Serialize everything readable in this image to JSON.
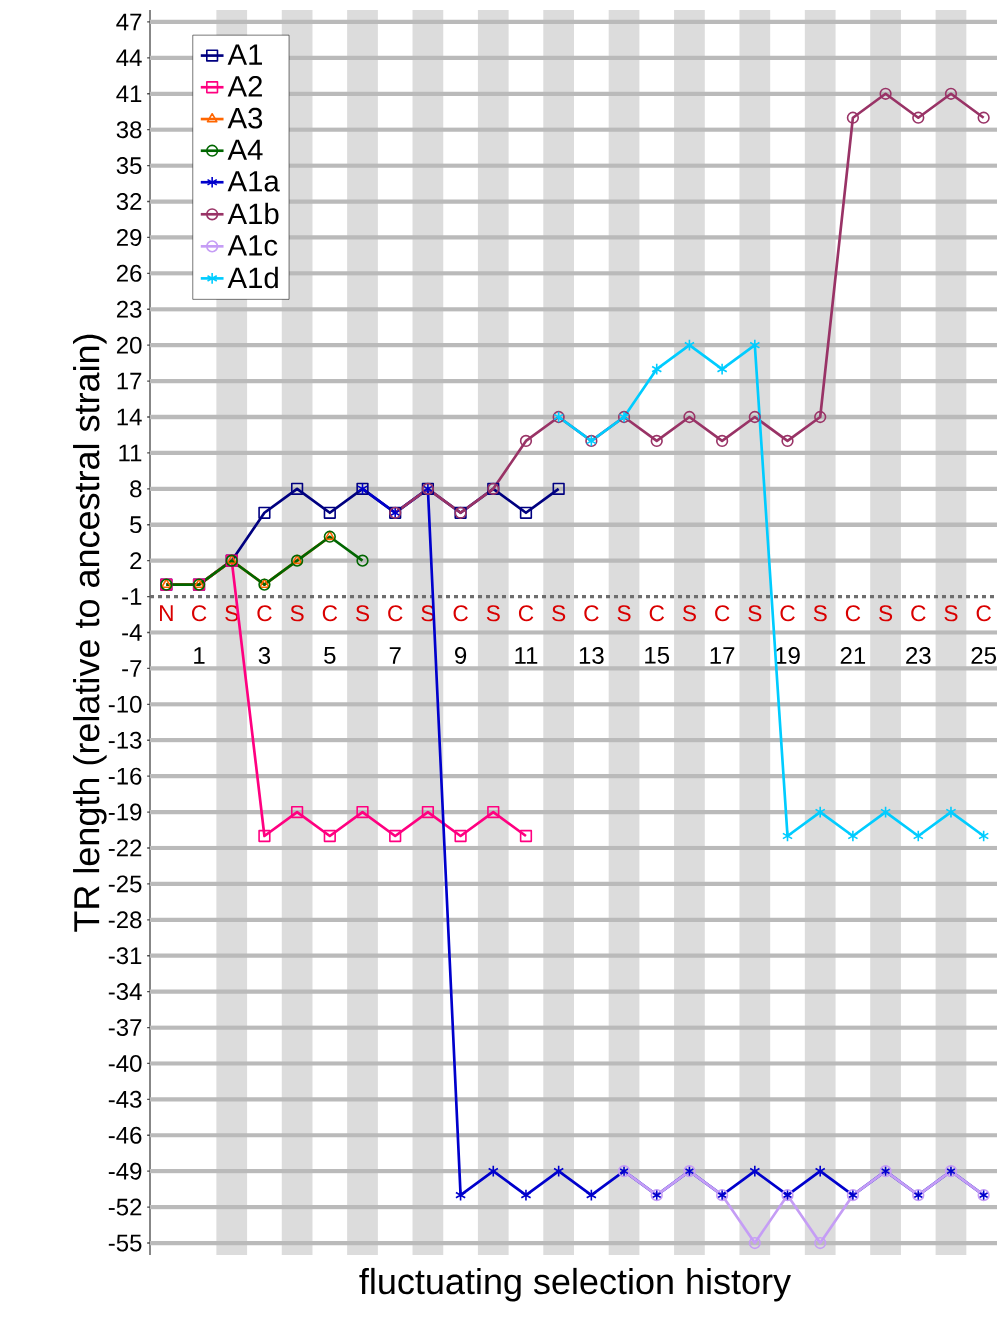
{
  "chart_data": {
    "type": "line",
    "xlabel": "fluctuating selection history",
    "ylabel": "TR length (relative to ancestral strain)",
    "x": [
      0,
      1,
      2,
      3,
      4,
      5,
      6,
      7,
      8,
      9,
      10,
      11,
      12,
      13,
      14,
      15,
      16,
      17,
      18,
      19,
      20,
      21,
      22,
      23,
      24,
      25
    ],
    "xlim": [
      -0.5,
      25.5
    ],
    "xticks": [
      1,
      3,
      5,
      7,
      9,
      11,
      13,
      15,
      17,
      19,
      21,
      23,
      25
    ],
    "ylim": [
      -56,
      48
    ],
    "yticks": [
      -55,
      -52,
      -49,
      -46,
      -43,
      -40,
      -37,
      -34,
      -31,
      -28,
      -25,
      -22,
      -19,
      -16,
      -13,
      -10,
      -7,
      -4,
      -1,
      2,
      5,
      8,
      11,
      14,
      17,
      20,
      23,
      26,
      29,
      32,
      35,
      38,
      41,
      44,
      47
    ],
    "grid": "y",
    "legend": "top left",
    "line_style": "solid",
    "ref_lines": [
      {
        "axis": "y",
        "value": -1,
        "color": "#6e6e6e",
        "line_style": "dashed"
      }
    ],
    "bands": [
      {
        "axis": "x",
        "from": 1.53,
        "to": 2.47,
        "color": "#dcdcdc"
      },
      {
        "axis": "x",
        "from": 3.53,
        "to": 4.47,
        "color": "#dcdcdc"
      },
      {
        "axis": "x",
        "from": 5.53,
        "to": 6.47,
        "color": "#dcdcdc"
      },
      {
        "axis": "x",
        "from": 7.53,
        "to": 8.47,
        "color": "#dcdcdc"
      },
      {
        "axis": "x",
        "from": 9.53,
        "to": 10.47,
        "color": "#dcdcdc"
      },
      {
        "axis": "x",
        "from": 11.53,
        "to": 12.47,
        "color": "#dcdcdc"
      },
      {
        "axis": "x",
        "from": 13.53,
        "to": 14.47,
        "color": "#dcdcdc"
      },
      {
        "axis": "x",
        "from": 15.53,
        "to": 16.47,
        "color": "#dcdcdc"
      },
      {
        "axis": "x",
        "from": 17.53,
        "to": 18.47,
        "color": "#dcdcdc"
      },
      {
        "axis": "x",
        "from": 19.53,
        "to": 20.47,
        "color": "#dcdcdc"
      },
      {
        "axis": "x",
        "from": 21.53,
        "to": 22.47,
        "color": "#dcdcdc"
      },
      {
        "axis": "x",
        "from": 23.53,
        "to": 24.47,
        "color": "#dcdcdc"
      }
    ],
    "annotations": [
      "N",
      "C",
      "S",
      "C",
      "S",
      "C",
      "S",
      "C",
      "S",
      "C",
      "S",
      "C",
      "S",
      "C",
      "S",
      "C",
      "S",
      "C",
      "S",
      "C",
      "S",
      "C",
      "S",
      "C",
      "S",
      "C"
    ],
    "series": [
      {
        "name": "A1",
        "color": "#000080",
        "marker": "square",
        "values": [
          0,
          0,
          2,
          6,
          8,
          6,
          8,
          6,
          8,
          6,
          8,
          6,
          8,
          null,
          null,
          null,
          null,
          null,
          null,
          null,
          null,
          null,
          null,
          null,
          null,
          null
        ]
      },
      {
        "name": "A2",
        "color": "#ff0080",
        "marker": "square",
        "values": [
          0,
          0,
          2,
          -21,
          -19,
          -21,
          -19,
          -21,
          -19,
          -21,
          -19,
          -21,
          null,
          null,
          null,
          null,
          null,
          null,
          null,
          null,
          null,
          null,
          null,
          null,
          null,
          null
        ]
      },
      {
        "name": "A3",
        "color": "#ff6600",
        "marker": "triangle",
        "values": [
          0,
          0,
          2,
          0,
          2,
          4,
          null,
          null,
          null,
          null,
          null,
          null,
          null,
          null,
          null,
          null,
          null,
          null,
          null,
          null,
          null,
          null,
          null,
          null,
          null,
          null
        ]
      },
      {
        "name": "A4",
        "color": "#006600",
        "marker": "circle",
        "values": [
          0,
          0,
          2,
          0,
          2,
          4,
          2,
          null,
          null,
          null,
          null,
          null,
          null,
          null,
          null,
          null,
          null,
          null,
          null,
          null,
          null,
          null,
          null,
          null,
          null,
          null
        ]
      },
      {
        "name": "A1a",
        "color": "#0000cc",
        "marker": "cross",
        "values": [
          null,
          null,
          null,
          null,
          null,
          null,
          8,
          6,
          8,
          -51,
          -49,
          -51,
          -49,
          -51,
          -49,
          -51,
          -49,
          -51,
          -49,
          -51,
          -49,
          -51,
          -49,
          -51,
          -49,
          -51
        ]
      },
      {
        "name": "A1b",
        "color": "#993366",
        "marker": "circle",
        "values": [
          null,
          null,
          null,
          null,
          null,
          null,
          null,
          6,
          8,
          6,
          8,
          12,
          14,
          12,
          14,
          12,
          14,
          12,
          14,
          12,
          14,
          39,
          41,
          39,
          41,
          39
        ]
      },
      {
        "name": "A1c",
        "color": "#c59df5",
        "marker": "circle",
        "values": [
          null,
          null,
          null,
          null,
          null,
          null,
          null,
          null,
          null,
          null,
          null,
          null,
          null,
          null,
          -49,
          -51,
          -49,
          -51,
          -55,
          -51,
          -55,
          -51,
          -49,
          -51,
          -49,
          -51
        ]
      },
      {
        "name": "A1d",
        "color": "#00ccff",
        "marker": "cross",
        "values": [
          null,
          null,
          null,
          null,
          null,
          null,
          null,
          null,
          null,
          null,
          null,
          null,
          14,
          12,
          14,
          18,
          20,
          18,
          20,
          -21,
          -19,
          -21,
          -19,
          -21,
          -19,
          -21
        ]
      }
    ]
  }
}
